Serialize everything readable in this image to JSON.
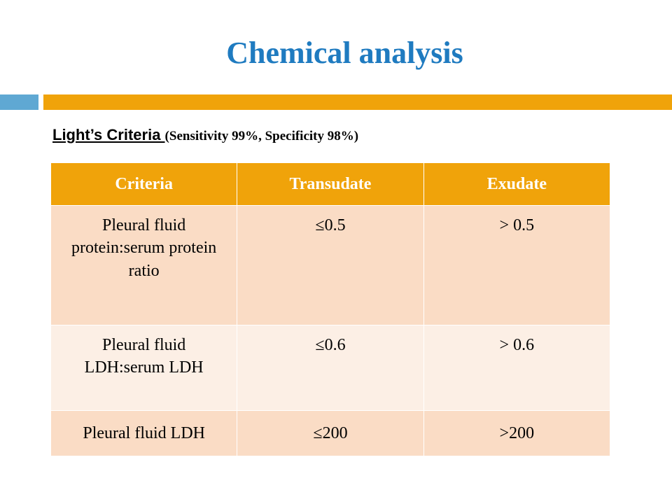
{
  "header": {
    "title": "Chemical analysis"
  },
  "subtitle": {
    "label": "Light’s Criteria ",
    "note": "(Sensitivity 99%, Specificity 98%)"
  },
  "table": {
    "columns": [
      "Criteria",
      "Transudate",
      "Exudate"
    ],
    "rows": [
      [
        "Pleural fluid protein:serum protein ratio",
        "≤0.5",
        "> 0.5"
      ],
      [
        "Pleural fluid LDH:serum LDH",
        "≤0.6",
        "> 0.6"
      ],
      [
        "Pleural fluid LDH",
        "≤200",
        ">200"
      ]
    ]
  }
}
